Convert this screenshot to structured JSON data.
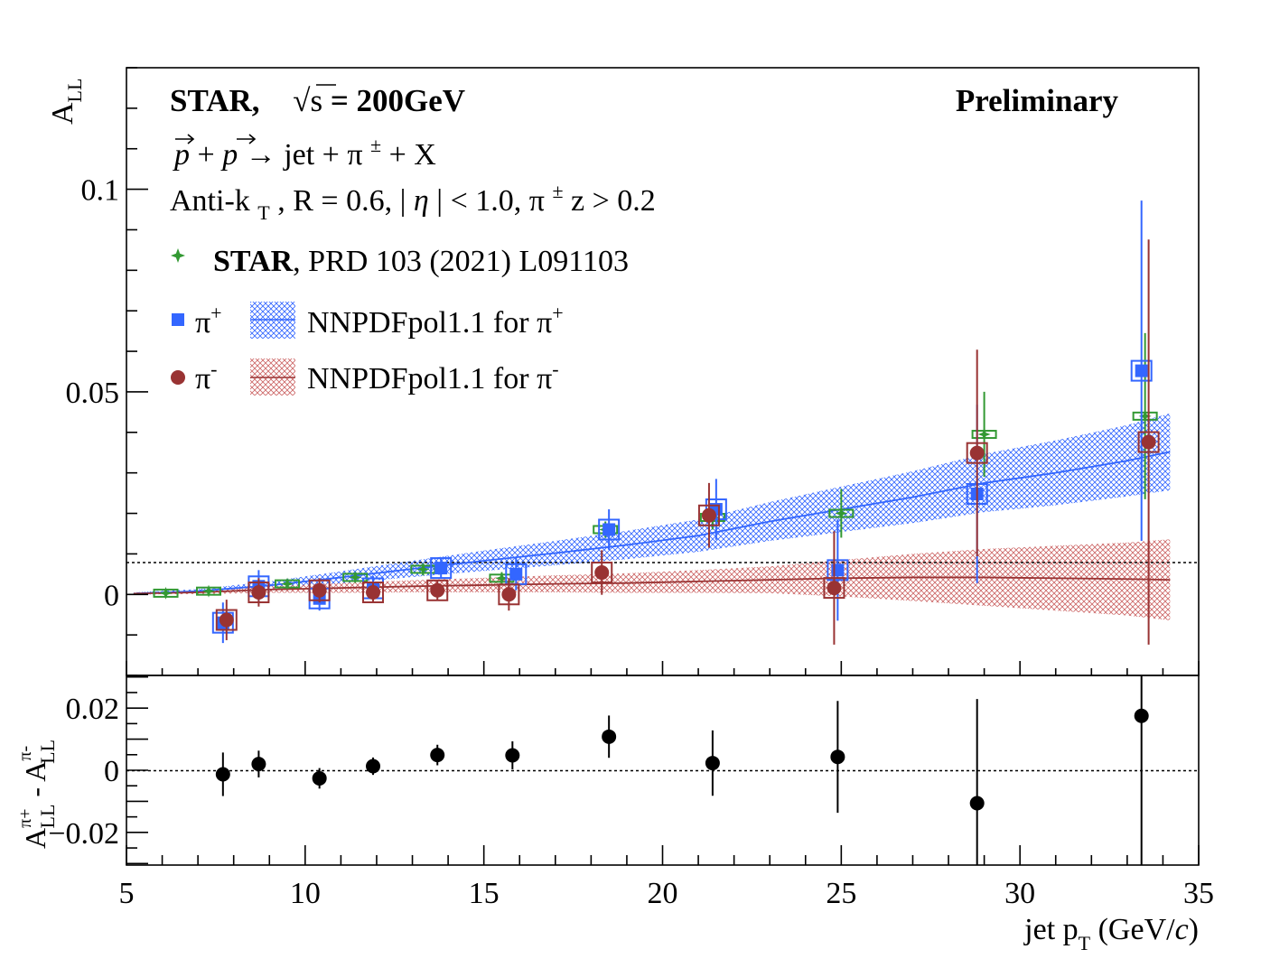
{
  "chart_data": [
    {
      "type": "scatter",
      "header": {
        "line1_experiment": "STAR,",
        "line1_energy_symbol": "√s",
        "line1_energy_value": " = 200GeV",
        "preliminary": "Preliminary",
        "line2": "p + p → jet + π± + X",
        "line2_p1": "p",
        "line2_plus1": " + ",
        "line2_p2": "p",
        "line2_rest": "→ jet + π",
        "line2_sup": "±",
        "line2_end": " + X",
        "line3_a": "Anti-k",
        "line3_sub": "T",
        "line3_b": ", R = 0.6, |",
        "line3_eta": "η",
        "line3_c": "| < 1.0,  π",
        "line3_sup": "±",
        "line3_d": " z > 0.2"
      },
      "legend": {
        "prd_bold": "STAR",
        "prd_text": ", PRD 103 (2021) L091103",
        "pip_label": "π",
        "pip_sup": "+",
        "pim_label": "π",
        "pim_sup": "-",
        "nnpdf_pip": "NNPDFpol1.1 for  π",
        "nnpdf_pip_sup": "+",
        "nnpdf_pim": "NNPDFpol1.1 for  π",
        "nnpdf_pim_sup": "-"
      },
      "ylabel_main": "A",
      "ylabel_sub": "LL",
      "xlim": [
        5,
        35
      ],
      "ylim": [
        -0.02,
        0.13
      ],
      "yticks": [
        {
          "v": 0,
          "label": "0"
        },
        {
          "v": 0.05,
          "label": "0.05"
        },
        {
          "v": 0.1,
          "label": "0.1"
        }
      ],
      "colors": {
        "pip": "#3366ff",
        "pim": "#993333",
        "prd": "#339933",
        "ref": "#000000"
      },
      "series": [
        {
          "name": "STAR, PRD 103 (2021) L091103",
          "key": "prd",
          "points": [
            {
              "x": 6.1,
              "y": 0.0003,
              "err": 0.0008
            },
            {
              "x": 7.3,
              "y": 0.0008,
              "err": 0.0009
            },
            {
              "x": 9.5,
              "y": 0.0026,
              "err": 0.001
            },
            {
              "x": 11.4,
              "y": 0.0042,
              "err": 0.0012
            },
            {
              "x": 13.3,
              "y": 0.0062,
              "err": 0.0015
            },
            {
              "x": 15.5,
              "y": 0.004,
              "err": 0.0015
            },
            {
              "x": 18.4,
              "y": 0.016,
              "err": 0.002
            },
            {
              "x": 21.4,
              "y": 0.019,
              "err": 0.003
            },
            {
              "x": 25.0,
              "y": 0.02,
              "err": 0.006
            },
            {
              "x": 29.0,
              "y": 0.0395,
              "err": 0.0105
            },
            {
              "x": 33.5,
              "y": 0.044,
              "err": 0.0205
            }
          ]
        },
        {
          "name": "π+",
          "key": "pip",
          "points": [
            {
              "x": 7.7,
              "y": -0.007,
              "err": 0.005
            },
            {
              "x": 8.7,
              "y": 0.002,
              "err": 0.004
            },
            {
              "x": 10.4,
              "y": -0.001,
              "err": 0.003
            },
            {
              "x": 11.9,
              "y": 0.0015,
              "err": 0.003
            },
            {
              "x": 13.8,
              "y": 0.0065,
              "err": 0.0025
            },
            {
              "x": 15.9,
              "y": 0.005,
              "err": 0.004
            },
            {
              "x": 18.5,
              "y": 0.016,
              "err": 0.005
            },
            {
              "x": 21.5,
              "y": 0.021,
              "err": 0.0075
            },
            {
              "x": 24.9,
              "y": 0.006,
              "err": 0.0125
            },
            {
              "x": 28.8,
              "y": 0.0248,
              "err": 0.022
            },
            {
              "x": 33.4,
              "y": 0.0552,
              "err": 0.042
            }
          ]
        },
        {
          "name": "π-",
          "key": "pim",
          "points": [
            {
              "x": 7.8,
              "y": -0.0063,
              "err": 0.005
            },
            {
              "x": 8.7,
              "y": 0.0005,
              "err": 0.0035
            },
            {
              "x": 10.4,
              "y": 0.001,
              "err": 0.003
            },
            {
              "x": 11.9,
              "y": 0.0005,
              "err": 0.0025
            },
            {
              "x": 13.7,
              "y": 0.001,
              "err": 0.0025
            },
            {
              "x": 15.7,
              "y": 0.0,
              "err": 0.004
            },
            {
              "x": 18.3,
              "y": 0.0054,
              "err": 0.0055
            },
            {
              "x": 21.3,
              "y": 0.0195,
              "err": 0.008
            },
            {
              "x": 24.8,
              "y": 0.0016,
              "err": 0.014
            },
            {
              "x": 28.8,
              "y": 0.0349,
              "err": 0.0255
            },
            {
              "x": 33.6,
              "y": 0.0376,
              "err": 0.05
            }
          ]
        }
      ],
      "theory": [
        {
          "name": "NNPDFpol1.1 for π+",
          "key": "pip",
          "x": [
            5.2,
            7,
            9,
            11,
            13,
            15,
            17,
            19,
            21,
            23,
            25,
            27,
            29,
            31,
            33,
            34.2
          ],
          "y": [
            0.0002,
            0.0008,
            0.0022,
            0.0042,
            0.0063,
            0.0083,
            0.0102,
            0.0122,
            0.0145,
            0.018,
            0.021,
            0.024,
            0.0275,
            0.03,
            0.033,
            0.0352
          ],
          "band": [
            0.0003,
            0.0005,
            0.001,
            0.0015,
            0.002,
            0.0025,
            0.003,
            0.0035,
            0.004,
            0.0048,
            0.0056,
            0.0064,
            0.0072,
            0.008,
            0.0088,
            0.0095
          ]
        },
        {
          "name": "NNPDFpol1.1 for π-",
          "key": "pim",
          "x": [
            5.2,
            7,
            9,
            11,
            13,
            15,
            17,
            19,
            21,
            23,
            25,
            27,
            29,
            31,
            33,
            34.2
          ],
          "y": [
            0.0002,
            0.0005,
            0.0012,
            0.0016,
            0.002,
            0.0023,
            0.0026,
            0.0028,
            0.0032,
            0.0036,
            0.004,
            0.0042,
            0.0042,
            0.004,
            0.0038,
            0.0036
          ],
          "band": [
            0.0002,
            0.0004,
            0.0008,
            0.0012,
            0.0015,
            0.0018,
            0.0021,
            0.0024,
            0.0028,
            0.0033,
            0.0045,
            0.0058,
            0.007,
            0.008,
            0.009,
            0.01
          ]
        }
      ]
    },
    {
      "type": "scatter",
      "ylabel_a": "A",
      "ylabel_a_sup": "π+",
      "ylabel_a_sub": "LL",
      "ylabel_mid": " - ",
      "ylabel_b": "A",
      "ylabel_b_sup": "π-",
      "ylabel_b_sub": "LL",
      "xlabel_main": "jet p",
      "xlabel_sub": "T",
      "xlabel_unit": " (GeV/",
      "xlabel_c": "c",
      "xlabel_close": ")",
      "xlim": [
        5,
        35
      ],
      "ylim": [
        -0.0305,
        0.0305
      ],
      "xticks": [
        {
          "v": 5,
          "label": "5"
        },
        {
          "v": 10,
          "label": "10"
        },
        {
          "v": 15,
          "label": "15"
        },
        {
          "v": 20,
          "label": "20"
        },
        {
          "v": 25,
          "label": "25"
        },
        {
          "v": 30,
          "label": "30"
        },
        {
          "v": 35,
          "label": "35"
        }
      ],
      "yticks": [
        {
          "v": 0.02,
          "label": "0.02"
        },
        {
          "v": 0,
          "label": "0"
        },
        {
          "v": -0.02,
          "label": "−0.02"
        }
      ],
      "series": [
        {
          "name": "difference",
          "points": [
            {
              "x": 7.7,
              "y": -0.0013,
              "err": 0.007
            },
            {
              "x": 8.7,
              "y": 0.002,
              "err": 0.0043
            },
            {
              "x": 10.4,
              "y": -0.0026,
              "err": 0.0033
            },
            {
              "x": 11.9,
              "y": 0.0013,
              "err": 0.0028
            },
            {
              "x": 13.7,
              "y": 0.0049,
              "err": 0.0033
            },
            {
              "x": 15.8,
              "y": 0.0048,
              "err": 0.0045
            },
            {
              "x": 18.5,
              "y": 0.0108,
              "err": 0.0068
            },
            {
              "x": 21.4,
              "y": 0.0023,
              "err": 0.0105
            },
            {
              "x": 24.9,
              "y": 0.0043,
              "err": 0.018
            },
            {
              "x": 28.8,
              "y": -0.0106,
              "err": 0.0335
            },
            {
              "x": 33.4,
              "y": 0.0175,
              "err": 0.0505
            }
          ]
        }
      ]
    }
  ]
}
